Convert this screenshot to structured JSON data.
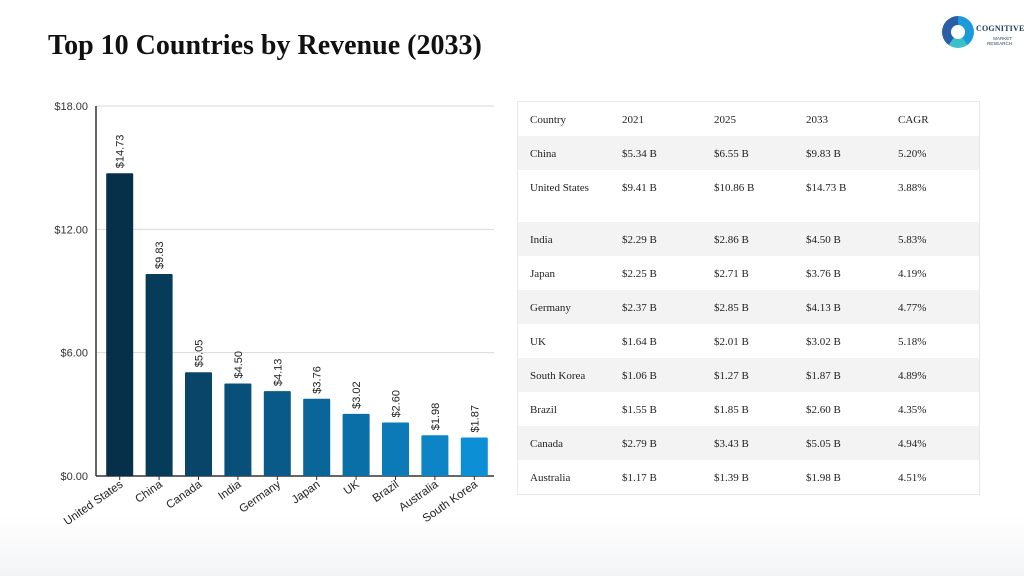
{
  "title": "Top 10 Countries by Revenue (2033)",
  "logo": {
    "brand": "COGNITIVE",
    "sub_line1": "MARKET",
    "sub_line2": "RESEARCH"
  },
  "colors": {
    "bar_dark": "#06304a",
    "bar_light": "#0d8fd6",
    "grid": "#d9d9d9",
    "axis": "#333333"
  },
  "chart_data": {
    "type": "bar",
    "categories": [
      "United States",
      "China",
      "Canada",
      "India",
      "Germany",
      "Japan",
      "UK",
      "Brazil",
      "Australia",
      "South Korea"
    ],
    "values": [
      14.73,
      9.83,
      5.05,
      4.5,
      4.13,
      3.76,
      3.02,
      2.6,
      1.98,
      1.87
    ],
    "data_labels": [
      "$14.73",
      "$9.83",
      "$5.05",
      "$4.50",
      "$4.13",
      "$3.76",
      "$3.02",
      "$2.60",
      "$1.98",
      "$1.87"
    ],
    "yticks": [
      0,
      6,
      12,
      18
    ],
    "ytick_labels": [
      "$0.00",
      "$6.00",
      "$12.00",
      "$18.00"
    ],
    "ylim": [
      0,
      18
    ],
    "grid": true,
    "legend": "none"
  },
  "table": {
    "headers": [
      "Country",
      "2021",
      "2025",
      "2033",
      "CAGR"
    ],
    "rows": [
      [
        "China",
        "$5.34 B",
        "$6.55 B",
        "$9.83 B",
        "5.20%"
      ],
      [
        "United States",
        "$9.41 B",
        "$10.86 B",
        "$14.73 B",
        "3.88%"
      ],
      [
        "India",
        "$2.29 B",
        "$2.86 B",
        "$4.50 B",
        "5.83%"
      ],
      [
        "Japan",
        "$2.25 B",
        "$2.71 B",
        "$3.76 B",
        "4.19%"
      ],
      [
        "Germany",
        "$2.37 B",
        "$2.85 B",
        "$4.13 B",
        "4.77%"
      ],
      [
        "UK",
        "$1.64 B",
        "$2.01 B",
        "$3.02 B",
        "5.18%"
      ],
      [
        "South Korea",
        "$1.06 B",
        "$1.27 B",
        "$1.87 B",
        "4.89%"
      ],
      [
        "Brazil",
        "$1.55 B",
        "$1.85 B",
        "$2.60 B",
        "4.35%"
      ],
      [
        "Canada",
        "$2.79 B",
        "$3.43 B",
        "$5.05 B",
        "4.94%"
      ],
      [
        "Australia",
        "$1.17 B",
        "$1.39 B",
        "$1.98 B",
        "4.51%"
      ]
    ]
  }
}
